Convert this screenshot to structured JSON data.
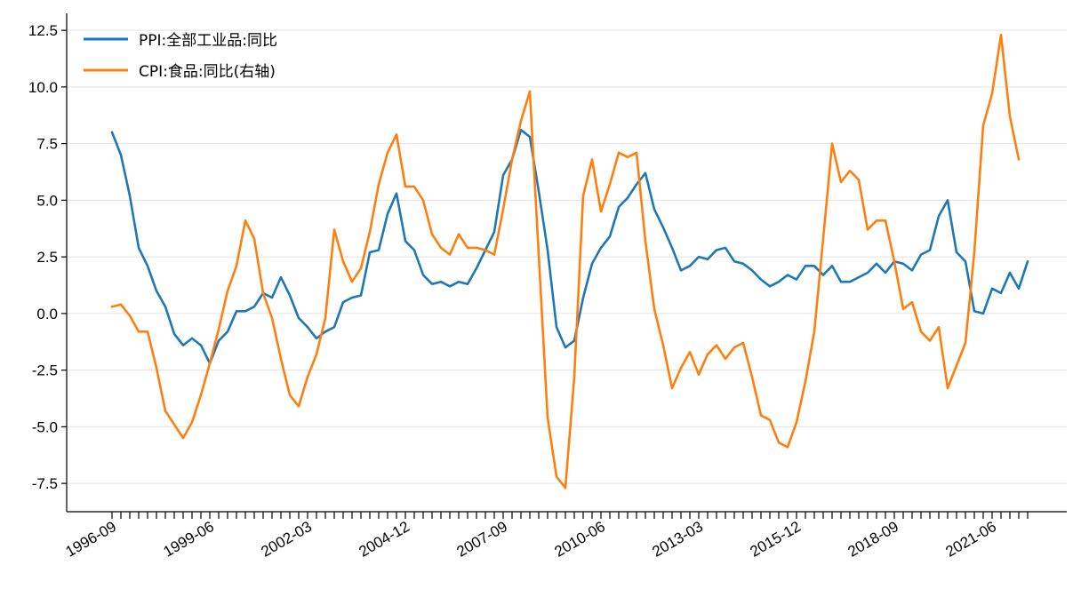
{
  "chart_data": {
    "type": "line",
    "title": "",
    "xlabel": "",
    "ylabel": "",
    "ylim": [
      -8.75,
      13.25
    ],
    "yticks": [
      "-7.5",
      "-5.0",
      "-2.5",
      "0.0",
      "2.5",
      "5.0",
      "7.5",
      "10.0",
      "12.5"
    ],
    "ytick_values": [
      -7.5,
      -5.0,
      -2.5,
      0.0,
      2.5,
      5.0,
      7.5,
      10.0,
      12.5
    ],
    "xtick_labels": [
      "1996-09",
      "1999-06",
      "2002-03",
      "2004-12",
      "2007-09",
      "2010-06",
      "2013-03",
      "2015-12",
      "2018-09",
      "2021-06"
    ],
    "x_start": "1996-09",
    "x_step_months": 3,
    "grid": "horizontal",
    "legend_position": "top-left",
    "series": [
      {
        "name": "PPI:全部工业品:同比",
        "color": "#1f77b4",
        "values": [
          8.0,
          7.0,
          5.2,
          2.9,
          2.1,
          1.0,
          0.3,
          -0.9,
          -1.4,
          -1.1,
          -1.4,
          -2.2,
          -1.2,
          -0.8,
          0.1,
          0.1,
          0.3,
          0.9,
          0.7,
          1.6,
          0.8,
          -0.2,
          -0.6,
          -1.1,
          -0.8,
          -0.6,
          0.5,
          0.7,
          0.8,
          2.7,
          2.8,
          4.4,
          5.3,
          3.2,
          2.8,
          1.7,
          1.3,
          1.4,
          1.2,
          1.4,
          1.3,
          2.0,
          2.8,
          3.6,
          6.1,
          6.8,
          8.1,
          7.8,
          5.4,
          2.8,
          -0.6,
          -1.5,
          -1.2,
          0.7,
          2.2,
          2.9,
          3.4,
          4.7,
          5.1,
          5.7,
          6.2,
          4.6,
          3.8,
          2.9,
          1.9,
          2.1,
          2.5,
          2.4,
          2.8,
          2.9,
          2.3,
          2.2,
          1.9,
          1.5,
          1.2,
          1.4,
          1.7,
          1.5,
          2.1,
          2.1,
          1.7,
          2.1,
          1.4,
          1.4,
          1.6,
          1.8,
          2.2,
          1.8,
          2.3,
          2.2,
          1.9,
          2.6,
          2.8,
          4.3,
          5.0,
          2.7,
          2.3,
          0.1,
          0.0,
          1.1,
          0.9,
          1.8,
          1.1,
          2.3
        ]
      },
      {
        "name": "CPI:食品:同比(右轴)",
        "color": "#ff7f0e",
        "values": [
          0.3,
          0.4,
          -0.1,
          -0.8,
          -0.8,
          -2.4,
          -4.3,
          -4.9,
          -5.5,
          -4.8,
          -3.6,
          -2.2,
          -0.7,
          1.0,
          2.1,
          4.1,
          3.3,
          0.9,
          -0.2,
          -2.0,
          -3.6,
          -4.1,
          -2.8,
          -1.8,
          -0.2,
          3.7,
          2.3,
          1.4,
          2.0,
          3.6,
          5.7,
          7.1,
          7.9,
          5.6,
          5.6,
          5.0,
          3.5,
          2.9,
          2.6,
          3.5,
          2.9,
          2.9,
          2.8,
          2.6,
          4.6,
          6.8,
          8.5,
          9.8,
          2.6,
          -4.6,
          -7.2,
          -7.7,
          -2.8,
          5.2,
          6.8,
          4.5,
          5.7,
          7.1,
          6.9,
          7.1,
          3.2,
          0.2,
          -1.4,
          -3.3,
          -2.4,
          -1.7,
          -2.7,
          -1.8,
          -1.4,
          -2.0,
          -1.5,
          -1.3,
          -2.8,
          -4.5,
          -4.7,
          -5.7,
          -5.9,
          -4.8,
          -3.0,
          -0.8,
          3.3,
          7.5,
          5.8,
          6.3,
          5.9,
          3.7,
          4.1,
          4.1,
          2.3,
          0.2,
          0.5,
          -0.8,
          -1.2,
          -0.6,
          -3.3,
          -2.3,
          -1.3,
          2.7,
          8.3,
          9.7,
          12.3,
          8.7,
          6.8
        ]
      }
    ]
  }
}
